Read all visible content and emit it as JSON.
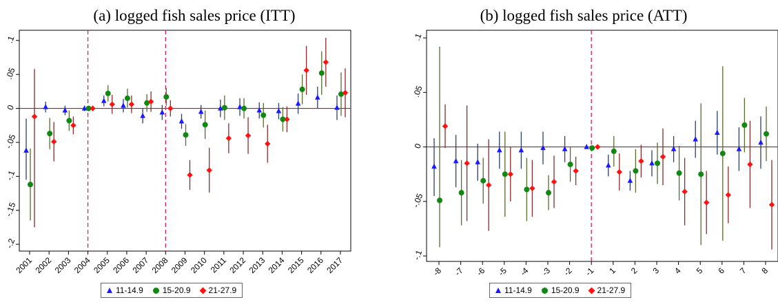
{
  "colors": {
    "series_1": "#1a1aff",
    "series_2": "#118811",
    "series_1_ci": "#2a3f66",
    "series_2_ci": "#556b2f",
    "series_3_ci": "#8b2a2a",
    "series_3": "#ff1111",
    "zero_line": "#a0203a",
    "event_line": "#d42060"
  },
  "chart_data": [
    {
      "type": "scatter",
      "title": "(a) logged fish sales price (ITT)",
      "x": [
        "2001",
        "2002",
        "2003",
        "2004",
        "2005",
        "2006",
        "2007",
        "2008",
        "2009",
        "2010",
        "2011",
        "2012",
        "2013",
        "2014",
        "2015",
        "2016",
        "2017"
      ],
      "yticks": [
        ".1",
        ".05",
        "0",
        "-.05",
        "-.1",
        "-.15",
        "-.2"
      ],
      "ytick_values": [
        0.1,
        0.05,
        0,
        -0.05,
        -0.1,
        -0.15,
        -0.2
      ],
      "ylim": [
        -0.21,
        0.115
      ],
      "vlines": [
        "2004",
        "2008"
      ],
      "hline": 0,
      "grid": false,
      "legend_position": "bottom-center",
      "series": [
        {
          "name": "11-14.9",
          "marker": "triangle",
          "values": [
            -0.062,
            0.002,
            -0.003,
            0.0,
            0.011,
            0.004,
            -0.011,
            -0.006,
            -0.019,
            -0.005,
            0.0,
            0.002,
            -0.003,
            -0.004,
            0.007,
            0.016,
            0.001
          ],
          "ci_low": [
            -0.105,
            -0.006,
            -0.01,
            -0.004,
            0.003,
            -0.006,
            -0.022,
            -0.017,
            -0.03,
            -0.015,
            -0.013,
            -0.011,
            -0.015,
            -0.016,
            -0.008,
            0.0,
            -0.017
          ],
          "ci_high": [
            -0.015,
            0.01,
            0.004,
            0.004,
            0.019,
            0.014,
            0.0,
            0.005,
            -0.008,
            0.005,
            0.013,
            0.015,
            0.009,
            0.008,
            0.022,
            0.032,
            0.019
          ]
        },
        {
          "name": "15-20.9",
          "marker": "circle",
          "values": [
            -0.112,
            -0.037,
            -0.018,
            0.0,
            0.022,
            0.015,
            0.008,
            0.017,
            -0.039,
            -0.024,
            0.001,
            0.0,
            -0.01,
            -0.016,
            0.028,
            0.052,
            0.021
          ],
          "ci_low": [
            -0.165,
            -0.06,
            -0.033,
            -0.004,
            0.01,
            0.001,
            -0.005,
            0.004,
            -0.055,
            -0.045,
            -0.017,
            -0.015,
            -0.028,
            -0.034,
            0.006,
            0.02,
            -0.011
          ],
          "ci_high": [
            -0.059,
            -0.014,
            -0.003,
            0.004,
            0.034,
            0.029,
            0.021,
            0.03,
            -0.023,
            -0.003,
            0.019,
            0.015,
            0.008,
            0.002,
            0.05,
            0.084,
            0.053
          ]
        },
        {
          "name": "21-27.9",
          "marker": "diamond",
          "values": [
            -0.012,
            -0.049,
            -0.025,
            0.0,
            0.006,
            0.006,
            0.01,
            0.0,
            -0.098,
            -0.091,
            -0.044,
            -0.04,
            -0.052,
            -0.016,
            0.056,
            0.068,
            0.023
          ],
          "ci_low": [
            -0.175,
            -0.078,
            -0.038,
            -0.004,
            -0.008,
            -0.007,
            -0.005,
            -0.012,
            -0.12,
            -0.124,
            -0.066,
            -0.067,
            -0.08,
            -0.035,
            0.02,
            0.032,
            -0.013
          ],
          "ci_high": [
            0.058,
            -0.02,
            -0.012,
            0.004,
            0.02,
            0.019,
            0.025,
            0.012,
            -0.076,
            -0.058,
            -0.022,
            -0.013,
            -0.024,
            0.003,
            0.092,
            0.104,
            0.059
          ]
        }
      ]
    },
    {
      "type": "scatter",
      "title": "(b) logged fish sales price (ATT)",
      "x": [
        "-8",
        "-7",
        "-6",
        "-5",
        "-4",
        "-3",
        "-2",
        "-1",
        "1",
        "2",
        "3",
        "4",
        "5",
        "6",
        "7",
        "8"
      ],
      "yticks": [
        ".1",
        ".05",
        "0",
        "-.05",
        "-.1"
      ],
      "ytick_values": [
        0.1,
        0.05,
        0,
        -0.05,
        -0.1
      ],
      "ylim": [
        -0.105,
        0.107
      ],
      "vlines": [
        "-1"
      ],
      "hline": 0,
      "grid": false,
      "legend_position": "bottom-center",
      "series": [
        {
          "name": "11-14.9",
          "marker": "triangle",
          "values": [
            -0.018,
            -0.013,
            -0.014,
            -0.003,
            -0.003,
            -0.001,
            -0.002,
            0.0,
            -0.017,
            -0.031,
            -0.015,
            -0.002,
            0.007,
            0.013,
            -0.002,
            0.004
          ],
          "ci_low": [
            -0.045,
            -0.037,
            -0.031,
            -0.02,
            -0.02,
            -0.016,
            -0.014,
            -0.002,
            -0.027,
            -0.04,
            -0.027,
            -0.014,
            -0.01,
            -0.007,
            -0.022,
            -0.02
          ],
          "ci_high": [
            0.008,
            0.011,
            0.003,
            0.014,
            0.014,
            0.014,
            0.01,
            0.002,
            -0.007,
            -0.022,
            -0.003,
            0.01,
            0.024,
            0.033,
            0.018,
            0.028
          ]
        },
        {
          "name": "15-20.9",
          "marker": "circle",
          "values": [
            -0.049,
            -0.042,
            -0.031,
            -0.025,
            -0.039,
            -0.042,
            -0.016,
            -0.001,
            -0.004,
            -0.022,
            -0.015,
            -0.024,
            -0.025,
            -0.006,
            0.02,
            0.012
          ],
          "ci_low": [
            -0.092,
            -0.072,
            -0.052,
            -0.064,
            -0.068,
            -0.058,
            -0.032,
            -0.003,
            -0.018,
            -0.042,
            -0.034,
            -0.049,
            -0.09,
            -0.086,
            -0.005,
            -0.013
          ],
          "ci_high": [
            0.092,
            -0.012,
            -0.01,
            0.014,
            -0.01,
            -0.026,
            0.0,
            0.001,
            0.01,
            -0.002,
            0.004,
            0.001,
            0.04,
            0.074,
            0.045,
            0.037
          ]
        },
        {
          "name": "21-27.9",
          "marker": "diamond",
          "values": [
            0.019,
            -0.015,
            -0.035,
            -0.025,
            -0.038,
            -0.032,
            -0.022,
            0.0,
            -0.023,
            -0.013,
            -0.009,
            -0.041,
            -0.051,
            -0.044,
            -0.016,
            -0.053
          ],
          "ci_low": [
            -0.001,
            -0.068,
            -0.077,
            -0.05,
            -0.064,
            -0.056,
            -0.035,
            -0.002,
            -0.04,
            -0.028,
            -0.035,
            -0.072,
            -0.08,
            -0.07,
            -0.056,
            -0.094
          ],
          "ci_high": [
            0.039,
            0.038,
            0.007,
            0.0,
            -0.012,
            -0.008,
            -0.009,
            0.002,
            -0.006,
            0.002,
            0.017,
            -0.01,
            -0.022,
            -0.018,
            0.024,
            -0.012
          ]
        }
      ]
    }
  ]
}
